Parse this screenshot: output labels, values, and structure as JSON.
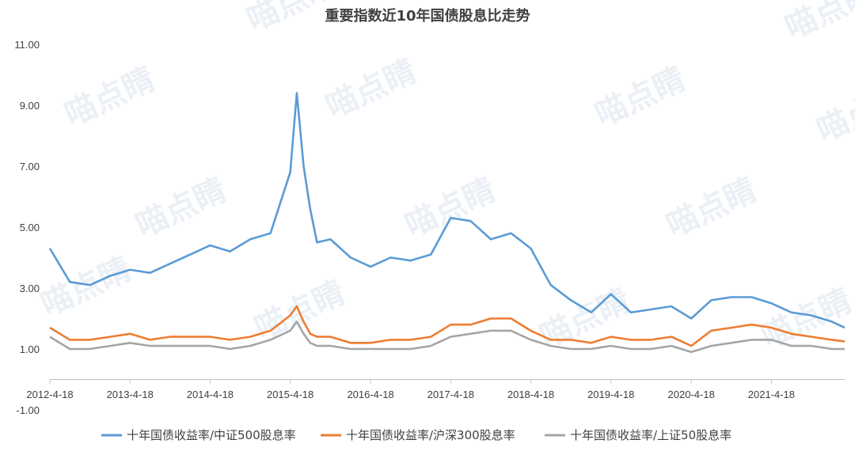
{
  "chart_data": {
    "type": "line",
    "title": "重要指数近10年国债股息比走势",
    "xlabel": "",
    "ylabel": "",
    "ylim": [
      -1,
      11
    ],
    "y_ticks": [
      "11.00",
      "9.00",
      "7.00",
      "5.00",
      "3.00",
      "1.00",
      "-1.00"
    ],
    "x_ticks": [
      "2012-4-18",
      "2013-4-18",
      "2014-4-18",
      "2015-4-18",
      "2016-4-18",
      "2017-4-18",
      "2018-4-18",
      "2019-4-18",
      "2020-4-18",
      "2021-4-18"
    ],
    "x": [
      "2012-04-18",
      "2012-07-18",
      "2012-10-18",
      "2013-01-18",
      "2013-04-18",
      "2013-07-18",
      "2013-10-18",
      "2014-01-18",
      "2014-04-18",
      "2014-07-18",
      "2014-10-18",
      "2015-01-18",
      "2015-04-18",
      "2015-05-18",
      "2015-06-18",
      "2015-07-18",
      "2015-08-18",
      "2015-10-18",
      "2016-01-18",
      "2016-04-18",
      "2016-07-18",
      "2016-10-18",
      "2017-01-18",
      "2017-04-18",
      "2017-07-18",
      "2017-10-18",
      "2018-01-18",
      "2018-04-18",
      "2018-07-18",
      "2018-10-18",
      "2019-01-18",
      "2019-04-18",
      "2019-07-18",
      "2019-10-18",
      "2020-01-18",
      "2020-04-18",
      "2020-07-18",
      "2020-10-18",
      "2021-01-18",
      "2021-04-18",
      "2021-07-18",
      "2021-10-18",
      "2022-01-18",
      "2022-03-18"
    ],
    "series": [
      {
        "name": "十年国债收益率/中证500股息率",
        "color": "#5b9bd5",
        "values": [
          4.3,
          3.2,
          3.1,
          3.4,
          3.6,
          3.5,
          3.8,
          4.1,
          4.4,
          4.2,
          4.6,
          4.8,
          6.8,
          9.4,
          7.0,
          5.6,
          4.5,
          4.6,
          4.0,
          3.7,
          4.0,
          3.9,
          4.1,
          5.3,
          5.2,
          4.6,
          4.8,
          4.3,
          3.1,
          2.6,
          2.2,
          2.8,
          2.2,
          2.3,
          2.4,
          2.0,
          2.6,
          2.7,
          2.7,
          2.5,
          2.2,
          2.1,
          1.9,
          1.7
        ]
      },
      {
        "name": "十年国债收益率/沪深300股息率",
        "color": "#ed7d31",
        "values": [
          1.7,
          1.3,
          1.3,
          1.4,
          1.5,
          1.3,
          1.4,
          1.4,
          1.4,
          1.3,
          1.4,
          1.6,
          2.1,
          2.4,
          1.9,
          1.5,
          1.4,
          1.4,
          1.2,
          1.2,
          1.3,
          1.3,
          1.4,
          1.8,
          1.8,
          2.0,
          2.0,
          1.6,
          1.3,
          1.3,
          1.2,
          1.4,
          1.3,
          1.3,
          1.4,
          1.1,
          1.6,
          1.7,
          1.8,
          1.7,
          1.5,
          1.4,
          1.3,
          1.25
        ]
      },
      {
        "name": "十年国债收益率/上证50股息率",
        "color": "#a5a5a5",
        "values": [
          1.4,
          1.0,
          1.0,
          1.1,
          1.2,
          1.1,
          1.1,
          1.1,
          1.1,
          1.0,
          1.1,
          1.3,
          1.6,
          1.9,
          1.5,
          1.2,
          1.1,
          1.1,
          1.0,
          1.0,
          1.0,
          1.0,
          1.1,
          1.4,
          1.5,
          1.6,
          1.6,
          1.3,
          1.1,
          1.0,
          1.0,
          1.1,
          1.0,
          1.0,
          1.1,
          0.9,
          1.1,
          1.2,
          1.3,
          1.3,
          1.1,
          1.1,
          1.0,
          1.0
        ]
      }
    ],
    "grid": false,
    "legend_position": "bottom"
  },
  "watermark_text": "喵点睛"
}
